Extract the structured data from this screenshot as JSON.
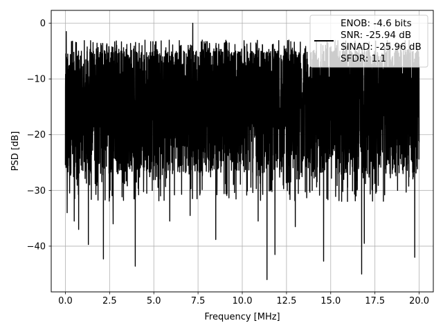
{
  "chart_data": {
    "type": "line",
    "xlabel": "Frequency [MHz]",
    "ylabel": "PSD [dB]",
    "xlim": [
      -0.8,
      20.8
    ],
    "ylim": [
      -48.2,
      2.3
    ],
    "xticks": [
      0.0,
      2.5,
      5.0,
      7.5,
      10.0,
      12.5,
      15.0,
      17.5,
      20.0
    ],
    "xtick_labels": [
      "0.0",
      "2.5",
      "5.0",
      "7.5",
      "10.0",
      "12.5",
      "15.0",
      "17.5",
      "20.0"
    ],
    "yticks": [
      0,
      -10,
      -20,
      -30,
      -40
    ],
    "ytick_labels": [
      "0",
      "−10",
      "−20",
      "−30",
      "−40"
    ],
    "grid": true,
    "legend_position": "top-right",
    "series": [
      {
        "color": "#000000",
        "x_range": [
          0.0,
          20.0
        ],
        "points": 4000,
        "typical_band": [
          -27,
          -5
        ],
        "peak": {
          "x": 0.05,
          "y": -1.5
        },
        "maximum": {
          "x": 7.2,
          "y": 0.0
        },
        "notable_dips": [
          {
            "x": 0.1,
            "y": -34
          },
          {
            "x": 0.5,
            "y": -35.5
          },
          {
            "x": 0.75,
            "y": -37
          },
          {
            "x": 1.3,
            "y": -39.7
          },
          {
            "x": 2.15,
            "y": -42.3
          },
          {
            "x": 2.7,
            "y": -36
          },
          {
            "x": 3.95,
            "y": -43.6
          },
          {
            "x": 5.9,
            "y": -35.5
          },
          {
            "x": 7.05,
            "y": -34.5
          },
          {
            "x": 8.5,
            "y": -38.8
          },
          {
            "x": 10.9,
            "y": -35.5
          },
          {
            "x": 11.4,
            "y": -46.0
          },
          {
            "x": 11.85,
            "y": -41.5
          },
          {
            "x": 13.0,
            "y": -36.5
          },
          {
            "x": 14.6,
            "y": -42.7
          },
          {
            "x": 16.75,
            "y": -45.0
          },
          {
            "x": 16.9,
            "y": -39.5
          },
          {
            "x": 19.75,
            "y": -42.0
          }
        ]
      }
    ],
    "legend": {
      "lines": [
        "ENOB: -4.6 bits",
        "SNR: -25.94 dB",
        "SINAD: -25.96 dB",
        "SFDR: 1.1"
      ]
    }
  }
}
